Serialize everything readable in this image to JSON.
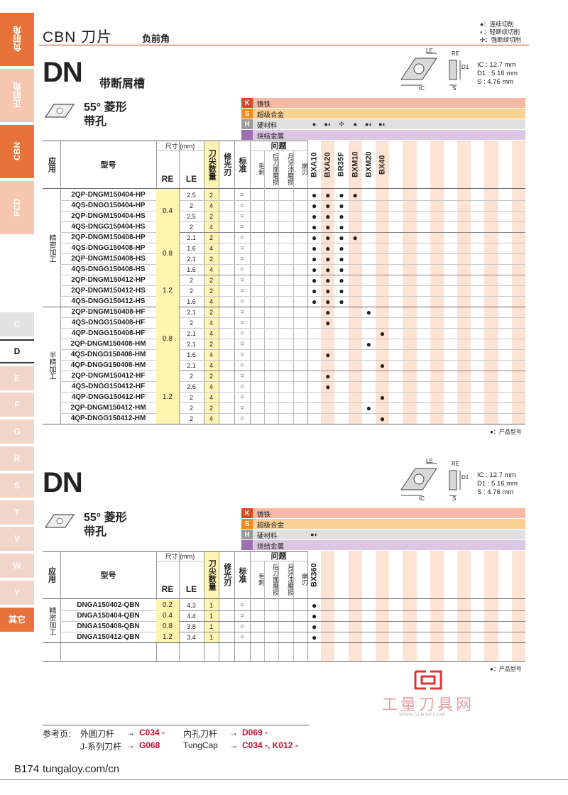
{
  "sidebar": {
    "tabs": [
      {
        "label": "负前角",
        "color": "#e8733a"
      },
      {
        "label": "正前角",
        "color": "#f6c6b0"
      },
      {
        "label": "CBN",
        "color": "#e8733a"
      },
      {
        "label": "PCD",
        "color": "#f6c6b0"
      },
      {
        "label": "C",
        "color": "#e2e2e2"
      },
      {
        "label": "D",
        "color": "#ffffff"
      },
      {
        "label": "E",
        "color": "#f1d5c9"
      },
      {
        "label": "F",
        "color": "#f1d5c9"
      },
      {
        "label": "G",
        "color": "#f1d5c9"
      },
      {
        "label": "R",
        "color": "#f1d5c9"
      },
      {
        "label": "S",
        "color": "#f1d5c9"
      },
      {
        "label": "T",
        "color": "#f1d5c9"
      },
      {
        "label": "V",
        "color": "#f1d5c9"
      },
      {
        "label": "W",
        "color": "#f1d5c9"
      },
      {
        "label": "Y",
        "color": "#f1d5c9"
      },
      {
        "label": "其它",
        "color": "#e8733a"
      }
    ]
  },
  "header": {
    "title": "CBN 刀片",
    "subtitle": "负前角",
    "legend": [
      "●：连续切削",
      "◐：轻断续切削",
      "✣：强断续切削"
    ]
  },
  "insert_diagram_labels": [
    "LE",
    "RE",
    "IC",
    "S",
    "D1"
  ],
  "materials": [
    {
      "code": "K",
      "name": "铸铁",
      "color": "#f6b9a3",
      "code_color": "#e0452a"
    },
    {
      "code": "S",
      "name": "超级合金",
      "color": "#f9d193",
      "code_color": "#ef8a1e"
    },
    {
      "code": "H",
      "name": "硬材料",
      "color": "#e0e0e0",
      "code_color": "#9a9a9a"
    },
    {
      "code": null,
      "name": "烧结金属",
      "color": "#dcc6e3",
      "code_color": "#9b6fb0"
    }
  ],
  "table_headers": {
    "application": "应用",
    "model": "型号",
    "size": "尺寸 (mm)",
    "re": "RE",
    "le": "LE",
    "count": "刀尖数量",
    "wiper": "修光刃",
    "standard": "标准",
    "problems": "问题",
    "problem_items": [
      "毛刺",
      "后刀面磨损",
      "月牙洼磨损",
      "崩刃"
    ]
  },
  "product_note": "●：产品型号",
  "sections": [
    {
      "code": "DN",
      "subtitle": "带断屑槽",
      "shape": "55° 菱形",
      "hole": "带孔",
      "dims": [
        "IC : 12.7 mm",
        "D1 : 5.16 mm",
        "S  : 4.76 mm"
      ],
      "grades": [
        "BXA10",
        "BXA20",
        "BR35F",
        "BXM10",
        "BXM20",
        "BX40"
      ],
      "hard_material_marks": [
        "●",
        "●◐",
        "✣",
        "●",
        "●◐",
        "●◐"
      ],
      "applications": [
        {
          "name": "精密加工",
          "re_groups": [
            {
              "re": 0.4,
              "rows": [
                {
                  "model": "2QP-DNGM150404-HP",
                  "le": 2.5,
                  "count": 2,
                  "standard": "○",
                  "grades": [
                    "●",
                    "●",
                    "●",
                    "●",
                    null,
                    null
                  ]
                },
                {
                  "model": "4QS-DNGG150404-HP",
                  "le": 2,
                  "count": 4,
                  "standard": "○",
                  "grades": [
                    "●",
                    "●",
                    "●",
                    null,
                    null,
                    null
                  ]
                },
                {
                  "model": "2QP-DNGM150404-HS",
                  "le": 2.5,
                  "count": 2,
                  "standard": "○",
                  "grades": [
                    "●",
                    "●",
                    "●",
                    null,
                    null,
                    null
                  ]
                },
                {
                  "model": "4QS-DNGG150404-HS",
                  "le": 2,
                  "count": 4,
                  "standard": "○",
                  "grades": [
                    "●",
                    "●",
                    "●",
                    null,
                    null,
                    null
                  ]
                }
              ]
            },
            {
              "re": 0.8,
              "rows": [
                {
                  "model": "2QP-DNGM150408-HP",
                  "le": 2.1,
                  "count": 2,
                  "standard": "○",
                  "grades": [
                    "●",
                    "●",
                    "●",
                    "●",
                    null,
                    null
                  ]
                },
                {
                  "model": "4QS-DNGG150408-HP",
                  "le": 1.6,
                  "count": 4,
                  "standard": "○",
                  "grades": [
                    "●",
                    "●",
                    "●",
                    null,
                    null,
                    null
                  ]
                },
                {
                  "model": "2QP-DNGM150408-HS",
                  "le": 2.1,
                  "count": 2,
                  "standard": "○",
                  "grades": [
                    "●",
                    "●",
                    "●",
                    null,
                    null,
                    null
                  ]
                },
                {
                  "model": "4QS-DNGG150408-HS",
                  "le": 1.6,
                  "count": 4,
                  "standard": "○",
                  "grades": [
                    "●",
                    "●",
                    "●",
                    null,
                    null,
                    null
                  ]
                }
              ]
            },
            {
              "re": 1.2,
              "rows": [
                {
                  "model": "2QP-DNGM150412-HP",
                  "le": 2,
                  "count": 2,
                  "standard": "○",
                  "grades": [
                    "●",
                    "●",
                    "●",
                    null,
                    null,
                    null
                  ]
                },
                {
                  "model": "2QP-DNGM150412-HS",
                  "le": 2,
                  "count": 2,
                  "standard": "○",
                  "grades": [
                    "●",
                    "●",
                    "●",
                    null,
                    null,
                    null
                  ]
                },
                {
                  "model": "4QS-DNGG150412-HS",
                  "le": 1.6,
                  "count": 4,
                  "standard": "○",
                  "grades": [
                    "●",
                    "●",
                    "●",
                    null,
                    null,
                    null
                  ]
                }
              ]
            }
          ]
        },
        {
          "name": "半精加工",
          "re_groups": [
            {
              "re": 0.8,
              "rows": [
                {
                  "model": "2QP-DNGM150408-HF",
                  "le": 2.1,
                  "count": 2,
                  "standard": "○",
                  "grades": [
                    null,
                    "●",
                    null,
                    null,
                    "●",
                    null
                  ]
                },
                {
                  "model": "4QS-DNGG150408-HF",
                  "le": 2,
                  "count": 4,
                  "standard": "○",
                  "grades": [
                    null,
                    "●",
                    null,
                    null,
                    null,
                    null
                  ]
                },
                {
                  "model": "4QP-DNGG150408-HF",
                  "le": 2.1,
                  "count": 4,
                  "standard": "○",
                  "grades": [
                    null,
                    null,
                    null,
                    null,
                    null,
                    "●"
                  ]
                },
                {
                  "model": "2QP-DNGM150408-HM",
                  "le": 2.1,
                  "count": 2,
                  "standard": "○",
                  "grades": [
                    null,
                    null,
                    null,
                    null,
                    "●",
                    null
                  ]
                },
                {
                  "model": "4QS-DNGG150408-HM",
                  "le": 1.6,
                  "count": 4,
                  "standard": "○",
                  "grades": [
                    null,
                    "●",
                    null,
                    null,
                    null,
                    null
                  ]
                },
                {
                  "model": "4QP-DNGG150408-HM",
                  "le": 2.1,
                  "count": 4,
                  "standard": "○",
                  "grades": [
                    null,
                    null,
                    null,
                    null,
                    null,
                    "●"
                  ]
                }
              ]
            },
            {
              "re": 1.2,
              "rows": [
                {
                  "model": "2QP-DNGM150412-HF",
                  "le": 2,
                  "count": 2,
                  "standard": "○",
                  "grades": [
                    null,
                    "●",
                    null,
                    null,
                    null,
                    null
                  ]
                },
                {
                  "model": "4QS-DNGG150412-HF",
                  "le": 2.6,
                  "count": 4,
                  "standard": "○",
                  "grades": [
                    null,
                    "●",
                    null,
                    null,
                    null,
                    null
                  ]
                },
                {
                  "model": "4QP-DNGG150412-HF",
                  "le": 2,
                  "count": 4,
                  "standard": "○",
                  "grades": [
                    null,
                    null,
                    null,
                    null,
                    null,
                    "●"
                  ]
                },
                {
                  "model": "2QP-DNGM150412-HM",
                  "le": 2,
                  "count": 2,
                  "standard": "○",
                  "grades": [
                    null,
                    null,
                    null,
                    null,
                    "●",
                    null
                  ]
                },
                {
                  "model": "4QP-DNGG150412-HM",
                  "le": 2,
                  "count": 4,
                  "standard": "○",
                  "grades": [
                    null,
                    null,
                    null,
                    null,
                    null,
                    "●"
                  ]
                }
              ]
            }
          ]
        }
      ]
    },
    {
      "code": "DN",
      "subtitle": null,
      "shape": "55° 菱形",
      "hole": "带孔",
      "dims": [
        "IC : 12.7 mm",
        "D1 : 5.16 mm",
        "S  : 4.76 mm"
      ],
      "grades": [
        "BX360"
      ],
      "hard_material_marks": [
        "●◐"
      ],
      "applications": [
        {
          "name": "精密加工",
          "re_groups": [
            {
              "re": 0.2,
              "rows": [
                {
                  "model": "DNGA150402-QBN",
                  "le": 4.3,
                  "count": 1,
                  "standard": "○",
                  "grades": [
                    "●"
                  ]
                }
              ]
            },
            {
              "re": 0.4,
              "rows": [
                {
                  "model": "DNGA150404-QBN",
                  "le": 4.4,
                  "count": 1,
                  "standard": "○",
                  "grades": [
                    "●"
                  ]
                }
              ]
            },
            {
              "re": 0.8,
              "rows": [
                {
                  "model": "DNGA150408-QBN",
                  "le": 3.8,
                  "count": 1,
                  "standard": "○",
                  "grades": [
                    "●"
                  ]
                }
              ]
            },
            {
              "re": 1.2,
              "rows": [
                {
                  "model": "DNGA150412-QBN",
                  "le": 3.4,
                  "count": 1,
                  "standard": "○",
                  "grades": [
                    "●"
                  ]
                }
              ]
            }
          ]
        }
      ]
    }
  ],
  "footer": {
    "ref_title": "参考页:",
    "arrow": "→",
    "refs": [
      {
        "label": "外圆刀杆",
        "page": "C034 -"
      },
      {
        "label": "内孔刀杆",
        "page": "D069 -"
      },
      {
        "label": "J-系列刀杆",
        "page": "G068"
      },
      {
        "label": "TungCap",
        "page": "C034 -, K012 -"
      }
    ],
    "page": "B174",
    "site": "tungaloy.com/cn"
  },
  "watermark": {
    "name": "工量刀具网",
    "url": "WWW.GLRJW.COM"
  }
}
